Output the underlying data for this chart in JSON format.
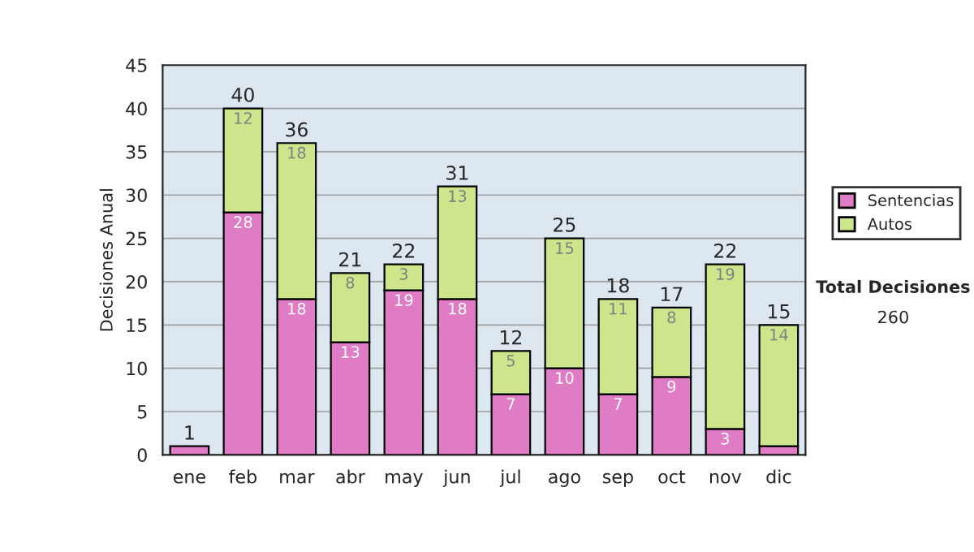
{
  "chart_data": {
    "type": "bar",
    "stacked": true,
    "ylabel": "Decisiones Anual",
    "categories": [
      "ene",
      "feb",
      "mar",
      "abr",
      "may",
      "jun",
      "jul",
      "ago",
      "sep",
      "oct",
      "nov",
      "dic"
    ],
    "series": [
      {
        "name": "Sentencias",
        "color": "#e07cc6",
        "values": [
          1,
          28,
          18,
          13,
          19,
          18,
          7,
          10,
          7,
          9,
          3,
          1
        ],
        "value_labels": [
          null,
          "28",
          "18",
          "13",
          "19",
          "18",
          "7",
          "10",
          "7",
          "9",
          "3",
          null
        ]
      },
      {
        "name": "Autos",
        "color": "#cde68c",
        "values": [
          null,
          12,
          18,
          8,
          3,
          13,
          5,
          15,
          11,
          8,
          19,
          14
        ],
        "value_labels": [
          null,
          "12",
          "18",
          "8",
          "3",
          "13",
          "5",
          "15",
          "11",
          "8",
          "19",
          "14"
        ]
      }
    ],
    "totals": [
      "1",
      "40",
      "36",
      "21",
      "22",
      "31",
      "12",
      "25",
      "18",
      "17",
      "22",
      "15"
    ],
    "ylim": [
      0,
      45
    ],
    "yticks": [
      0,
      5,
      10,
      15,
      20,
      25,
      30,
      35,
      40,
      45
    ],
    "grid": "y",
    "legend": "right",
    "annotations": [
      "Total Decisiones",
      "260"
    ]
  }
}
